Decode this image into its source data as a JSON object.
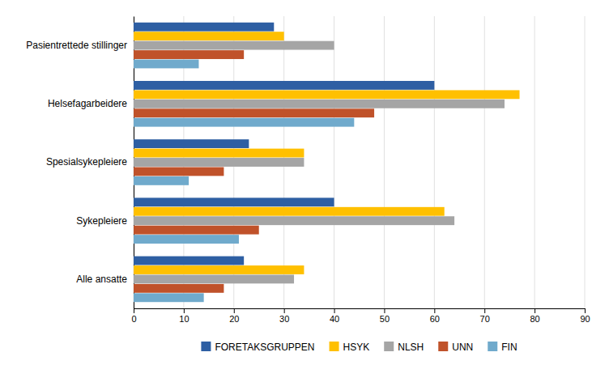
{
  "chart_data": {
    "type": "bar",
    "orientation": "horizontal",
    "categories": [
      "Pasientrettede stillinger",
      "Helsefagarbeidere",
      "Spesialsykepleiere",
      "Sykepleiere",
      "Alle ansatte"
    ],
    "series": [
      {
        "name": "FORETAKSGRUPPEN",
        "color": "#2E5FA3",
        "values": [
          28,
          60,
          23,
          40,
          22
        ]
      },
      {
        "name": "HSYK",
        "color": "#FFC000",
        "values": [
          30,
          77,
          34,
          62,
          34
        ]
      },
      {
        "name": "NLSH",
        "color": "#A5A5A5",
        "values": [
          40,
          74,
          34,
          64,
          32
        ]
      },
      {
        "name": "UNN",
        "color": "#C0522A",
        "values": [
          22,
          48,
          18,
          25,
          18
        ]
      },
      {
        "name": "FIN",
        "color": "#70AACC",
        "values": [
          13,
          44,
          11,
          21,
          14
        ]
      }
    ],
    "xlim": [
      0,
      90
    ],
    "xticks": [
      0,
      10,
      20,
      30,
      40,
      50,
      60,
      70,
      80,
      90
    ],
    "grid": true,
    "legend": "bottom"
  }
}
